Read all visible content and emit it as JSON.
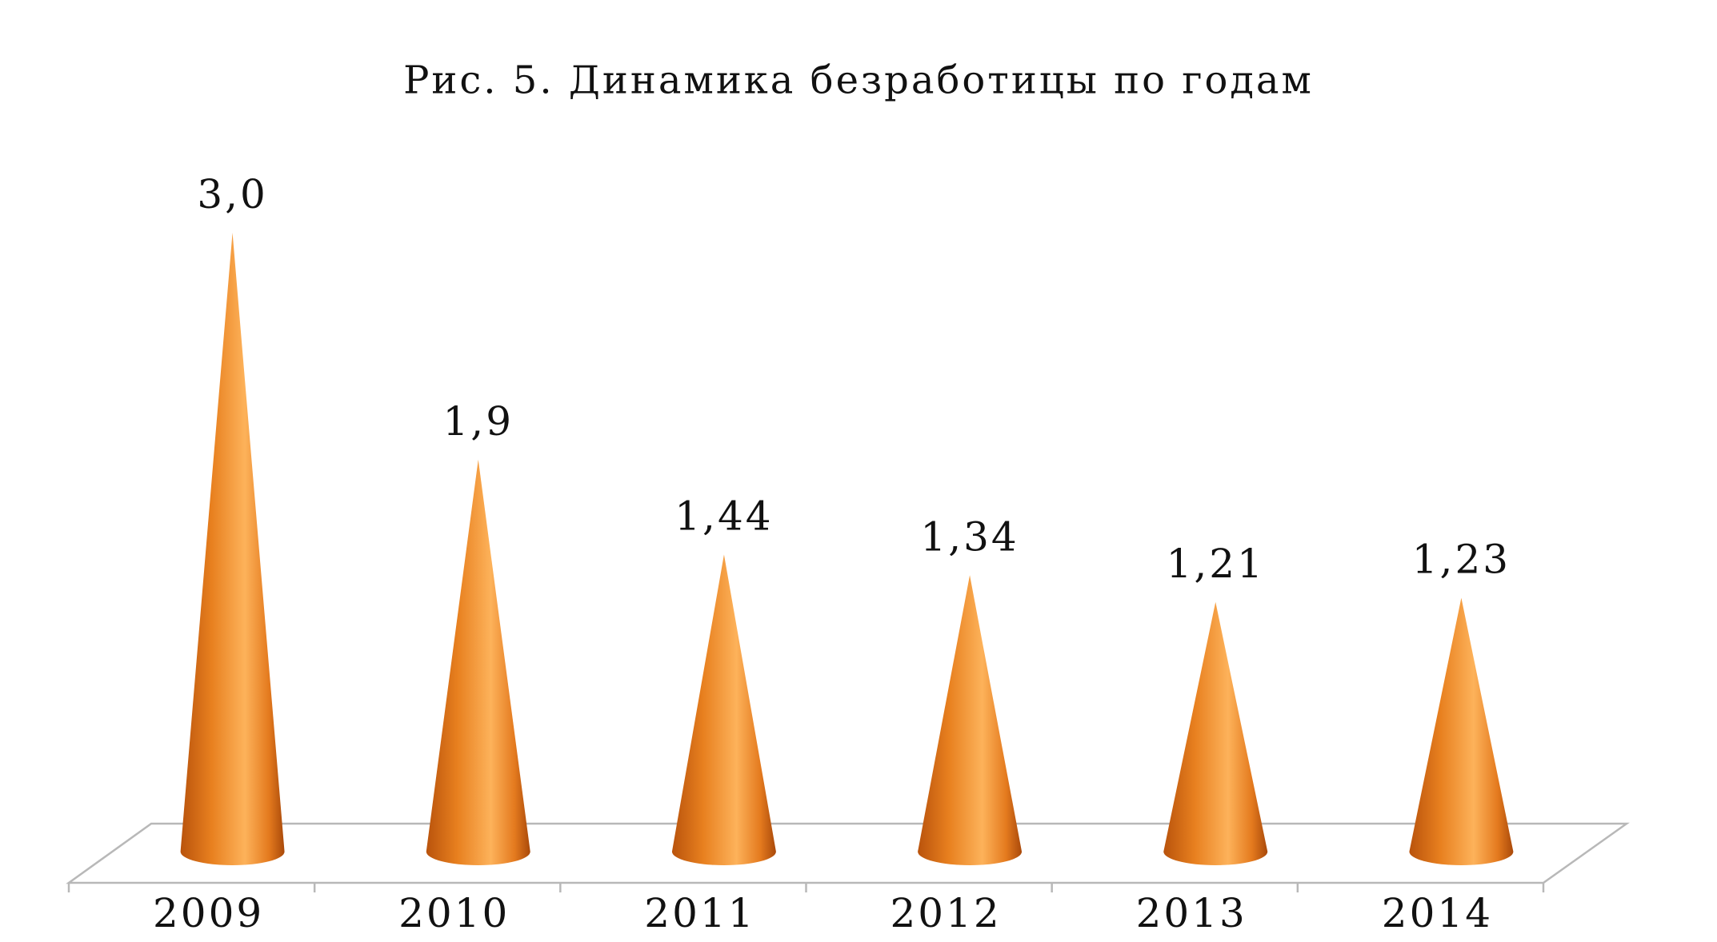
{
  "chart_data": {
    "type": "cone",
    "title": "Рис. 5. Динамика безработицы по годам",
    "categories": [
      "2009",
      "2010",
      "2011",
      "2012",
      "2013",
      "2014"
    ],
    "values": [
      3.0,
      1.9,
      1.44,
      1.34,
      1.21,
      1.23
    ],
    "value_labels": [
      "3,0",
      "1,9",
      "1,44",
      "1,34",
      "1,21",
      "1,23"
    ],
    "color": "#f39a3c"
  }
}
